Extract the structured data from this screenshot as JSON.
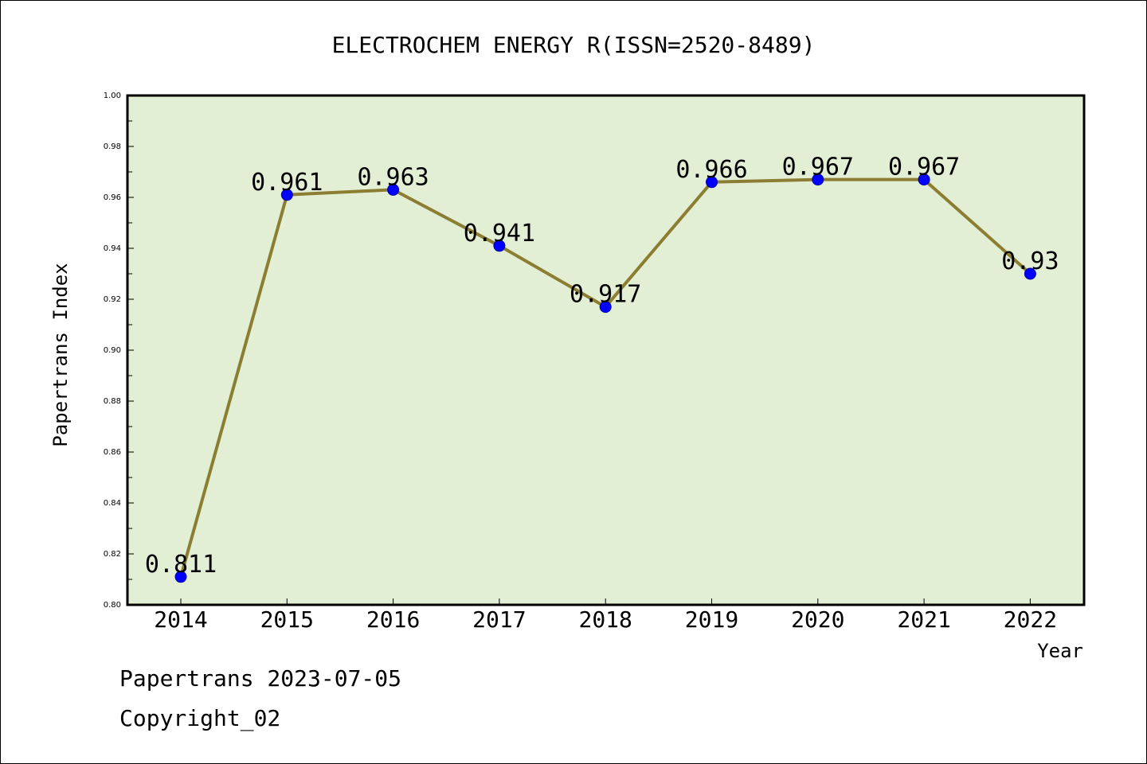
{
  "chart_data": {
    "type": "line",
    "title": "ELECTROCHEM ENERGY R(ISSN=2520-8489)",
    "xlabel": "Year",
    "ylabel": "Papertrans Index",
    "categories": [
      "2014",
      "2015",
      "2016",
      "2017",
      "2018",
      "2019",
      "2020",
      "2021",
      "2022"
    ],
    "series": [
      {
        "values": [
          0.811,
          0.961,
          0.963,
          0.941,
          0.917,
          0.966,
          0.967,
          0.967,
          0.93
        ],
        "labels": [
          "0.811",
          "0.961",
          "0.963",
          "0.941",
          "0.917",
          "0.966",
          "0.967",
          "0.967",
          "0.93"
        ]
      }
    ],
    "ylim": [
      0.8,
      1.0
    ],
    "yticks": [
      "0.80",
      "0.82",
      "0.84",
      "0.86",
      "0.88",
      "0.90",
      "0.92",
      "0.94",
      "0.96",
      "0.98",
      "1.00"
    ],
    "grid": false,
    "colors": {
      "plot_background": "#e2efd5",
      "line": "#8b7d32",
      "marker": "#0000ff"
    }
  },
  "footer": {
    "line1": "Papertrans 2023-07-05",
    "line2": "Copyright_02"
  }
}
